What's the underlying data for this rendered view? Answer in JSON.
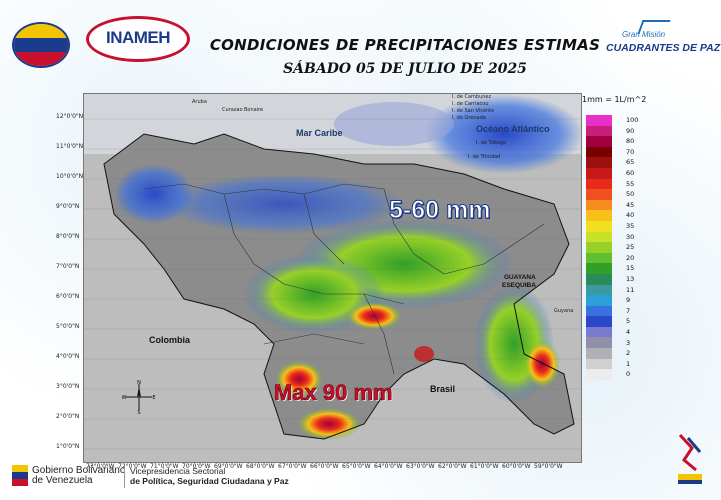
{
  "header": {
    "title": "CONDICIONES DE PRECIPITACIONES ESTIMAS",
    "subtitle": "SÁBADO 05 DE JULIO DE 2025",
    "org_logo_text": "INAMEH",
    "gm_line1": "Gran Misión",
    "gm_line2": "CUADRANTES DE PAZ"
  },
  "map": {
    "unit_note": "1mm = 1L/m^2",
    "labels": {
      "mar_caribe": "Mar Caribe",
      "oceano_atlantico": "Océano Atlántico",
      "colombia": "Colombia",
      "brasil": "Brasil",
      "guayana": "GUAYANA",
      "esequiba": "ESEQUIBA",
      "guyana": "Guyana",
      "aruba": "Aruba",
      "curazao": "Curazao",
      "bonaire": "Bonaire",
      "trinidad": "I. de Trinidad",
      "isl_1": "I. de Cambunez",
      "isl_2": "I. de Carriacou",
      "isl_3": "I. de San Vicente",
      "isl_4": "I. de Grenada",
      "isl_5": "I. de Tobago"
    },
    "range_text": "5-60 mm",
    "max_text": "Max 90 mm",
    "lat_labels": [
      "12°0'0\"N",
      "11°0'0\"N",
      "10°0'0\"N",
      "9°0'0\"N",
      "8°0'0\"N",
      "7°0'0\"N",
      "6°0'0\"N",
      "5°0'0\"N",
      "4°0'0\"N",
      "3°0'0\"N",
      "2°0'0\"N",
      "1°0'0\"N"
    ],
    "lon_labels": [
      "73°0'0\"W",
      "72°0'0\"W",
      "71°0'0\"W",
      "70°0'0\"W",
      "69°0'0\"W",
      "68°0'0\"W",
      "67°0'0\"W",
      "66°0'0\"W",
      "65°0'0\"W",
      "64°0'0\"W",
      "63°0'0\"W",
      "62°0'0\"W",
      "61°0'0\"W",
      "60°0'0\"W",
      "59°0'0\"W"
    ],
    "compass": {
      "n": "N",
      "s": "S",
      "e": "E",
      "w": "W"
    }
  },
  "legend": {
    "levels": [
      "100",
      "90",
      "80",
      "70",
      "65",
      "60",
      "55",
      "50",
      "45",
      "40",
      "35",
      "30",
      "25",
      "20",
      "15",
      "13",
      "11",
      "9",
      "7",
      "5",
      "4",
      "3",
      "2",
      "1",
      "0"
    ],
    "colors": [
      "#e830c8",
      "#c8207a",
      "#a00040",
      "#7a0000",
      "#9c1010",
      "#c81818",
      "#e82a1a",
      "#f05020",
      "#f88a20",
      "#f8c018",
      "#f0e020",
      "#c8e028",
      "#98d028",
      "#60c030",
      "#30a028",
      "#2a8a5a",
      "#3a9aa0",
      "#2aa0d8",
      "#3a70e0",
      "#2a48c8",
      "#7a7ad0",
      "#9090a8",
      "#b0b0b8",
      "#d0d0d0",
      "#ececec"
    ]
  },
  "footer": {
    "gob_line1": "Gobierno Bolivariano",
    "gob_line2": "de Venezuela",
    "vp_line1": "Vicepresidencia Sectorial",
    "vp_line2": "de Política, Seguridad Ciudadana y Paz"
  }
}
